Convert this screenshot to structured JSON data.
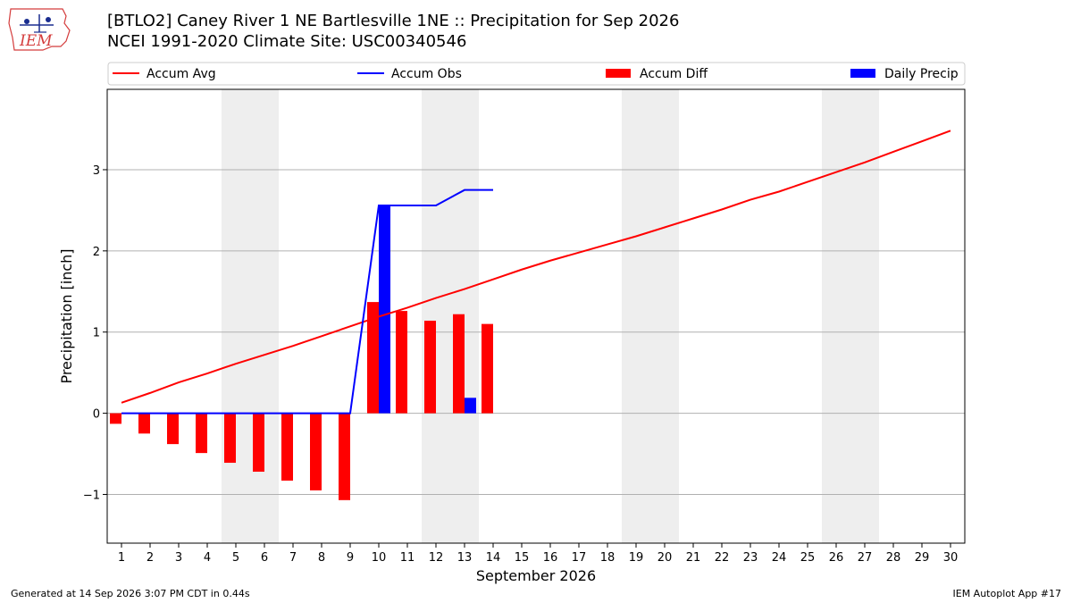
{
  "header": {
    "title_line1": "[BTLO2] Caney River 1 NE Bartlesville 1NE :: Precipitation for Sep 2026",
    "title_line2": "NCEI 1991-2020 Climate Site: USC00340546",
    "logo_text": "IEM"
  },
  "footer": {
    "generated": "Generated at 14 Sep 2026 3:07 PM CDT in 0.44s",
    "app": "IEM Autoplot App #17"
  },
  "colors": {
    "accum_avg": "#ff0000",
    "accum_obs": "#0000ff",
    "accum_diff": "#ff0000",
    "daily_precip": "#0000ff",
    "weekend_shade": "#eeeeee",
    "grid": "#b0b0b0"
  },
  "chart_data": {
    "type": "bar",
    "xlabel": "September 2026",
    "ylabel": "Precipitation [inch]",
    "xlim": [
      0.5,
      30.5
    ],
    "ylim": [
      -1.6,
      3.99
    ],
    "yticks": [
      -1,
      0,
      1,
      2,
      3
    ],
    "ytick_labels": [
      "−1",
      "0",
      "1",
      "2",
      "3"
    ],
    "days": [
      1,
      2,
      3,
      4,
      5,
      6,
      7,
      8,
      9,
      10,
      11,
      12,
      13,
      14,
      15,
      16,
      17,
      18,
      19,
      20,
      21,
      22,
      23,
      24,
      25,
      26,
      27,
      28,
      29,
      30
    ],
    "weekend_days": [
      5,
      6,
      12,
      13,
      19,
      20,
      26,
      27
    ],
    "grid": true,
    "legend_placement": "top",
    "legend": [
      "Accum Avg",
      "Accum Obs",
      "Accum Diff",
      "Daily Precip"
    ],
    "series": [
      {
        "name": "Accum Avg",
        "kind": "line",
        "x": [
          1,
          2,
          3,
          4,
          5,
          6,
          7,
          8,
          9,
          10,
          11,
          12,
          13,
          14,
          15,
          16,
          17,
          18,
          19,
          20,
          21,
          22,
          23,
          24,
          25,
          26,
          27,
          28,
          29,
          30
        ],
        "values": [
          0.13,
          0.25,
          0.38,
          0.49,
          0.61,
          0.72,
          0.83,
          0.95,
          1.07,
          1.19,
          1.3,
          1.42,
          1.53,
          1.65,
          1.77,
          1.88,
          1.98,
          2.08,
          2.18,
          2.29,
          2.4,
          2.51,
          2.63,
          2.73,
          2.85,
          2.97,
          3.09,
          3.22,
          3.35,
          3.48
        ]
      },
      {
        "name": "Accum Obs",
        "kind": "line",
        "x": [
          1,
          2,
          3,
          4,
          5,
          6,
          7,
          8,
          9,
          10,
          11,
          12,
          13,
          14
        ],
        "values": [
          0,
          0,
          0,
          0,
          0,
          0,
          0,
          0,
          0,
          2.56,
          2.56,
          2.56,
          2.75,
          2.75
        ]
      },
      {
        "name": "Accum Diff",
        "kind": "bar",
        "x": [
          1,
          2,
          3,
          4,
          5,
          6,
          7,
          8,
          9,
          10,
          11,
          12,
          13,
          14
        ],
        "values": [
          -0.13,
          -0.25,
          -0.38,
          -0.49,
          -0.61,
          -0.72,
          -0.83,
          -0.95,
          -1.07,
          1.37,
          1.26,
          1.14,
          1.22,
          1.1
        ]
      },
      {
        "name": "Daily Precip",
        "kind": "bar",
        "x": [
          10,
          13
        ],
        "values": [
          2.56,
          0.19
        ]
      }
    ]
  }
}
